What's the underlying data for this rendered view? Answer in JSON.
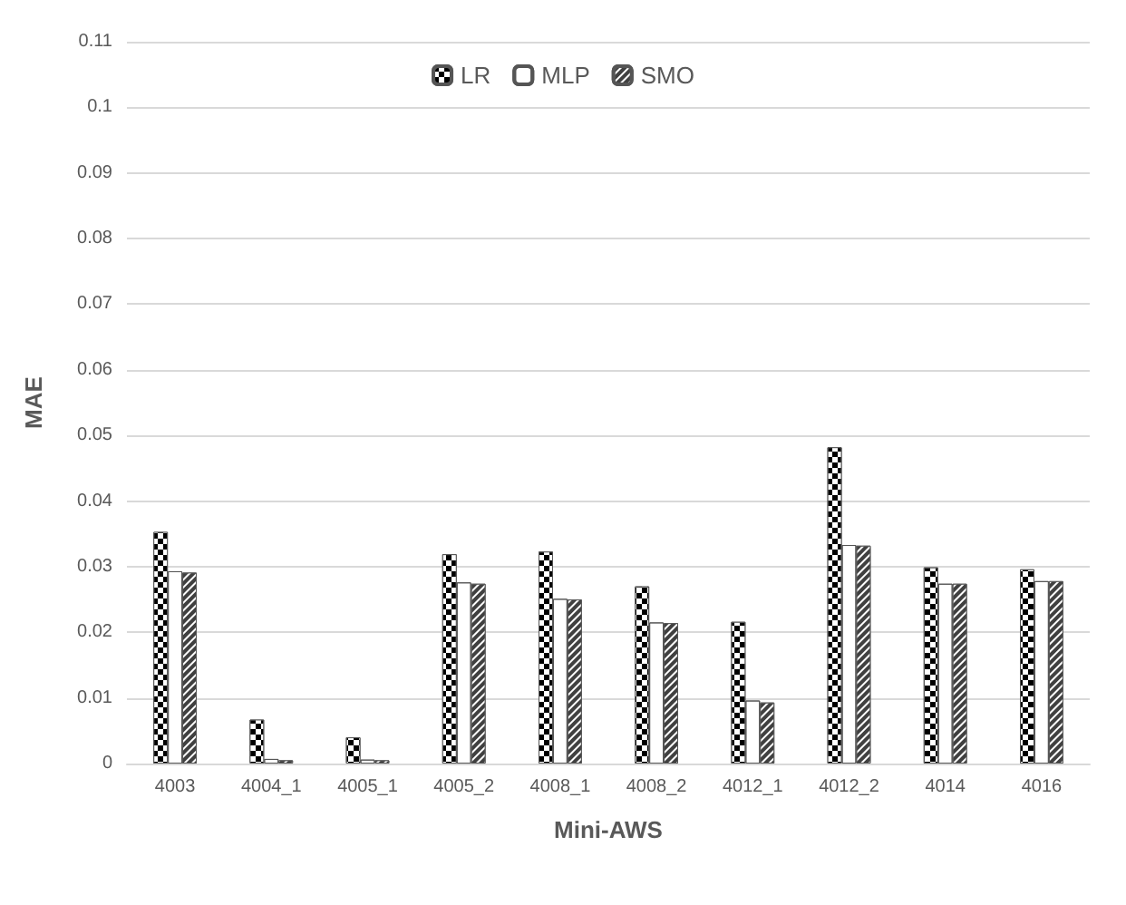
{
  "chart_data": {
    "type": "bar",
    "xlabel": "Mini-AWS",
    "ylabel": "MAE",
    "categories": [
      "4003",
      "4004_1",
      "4005_1",
      "4005_2",
      "4008_1",
      "4008_2",
      "4012_1",
      "4012_2",
      "4014",
      "4016"
    ],
    "series": [
      {
        "name": "LR",
        "color": "#000000",
        "values": [
          0.0353,
          0.0067,
          0.004,
          0.0319,
          0.0323,
          0.027,
          0.0216,
          0.0482,
          0.0299,
          0.0296
        ]
      },
      {
        "name": "MLP",
        "color": "#ffffff",
        "values": [
          0.0293,
          0.0007,
          0.0006,
          0.0276,
          0.0251,
          0.0215,
          0.0096,
          0.0333,
          0.0274,
          0.0278
        ]
      },
      {
        "name": "SMO",
        "color": "#404040",
        "values": [
          0.0291,
          0.0005,
          0.0005,
          0.0274,
          0.025,
          0.0214,
          0.0093,
          0.0332,
          0.0274,
          0.0278
        ]
      }
    ],
    "ylim": [
      0,
      0.11
    ],
    "yticks": [
      0,
      0.01,
      0.02,
      0.03,
      0.04,
      0.05,
      0.06,
      0.07,
      0.08,
      0.09,
      0.1,
      0.11
    ],
    "grid": "y",
    "legend": "top"
  }
}
